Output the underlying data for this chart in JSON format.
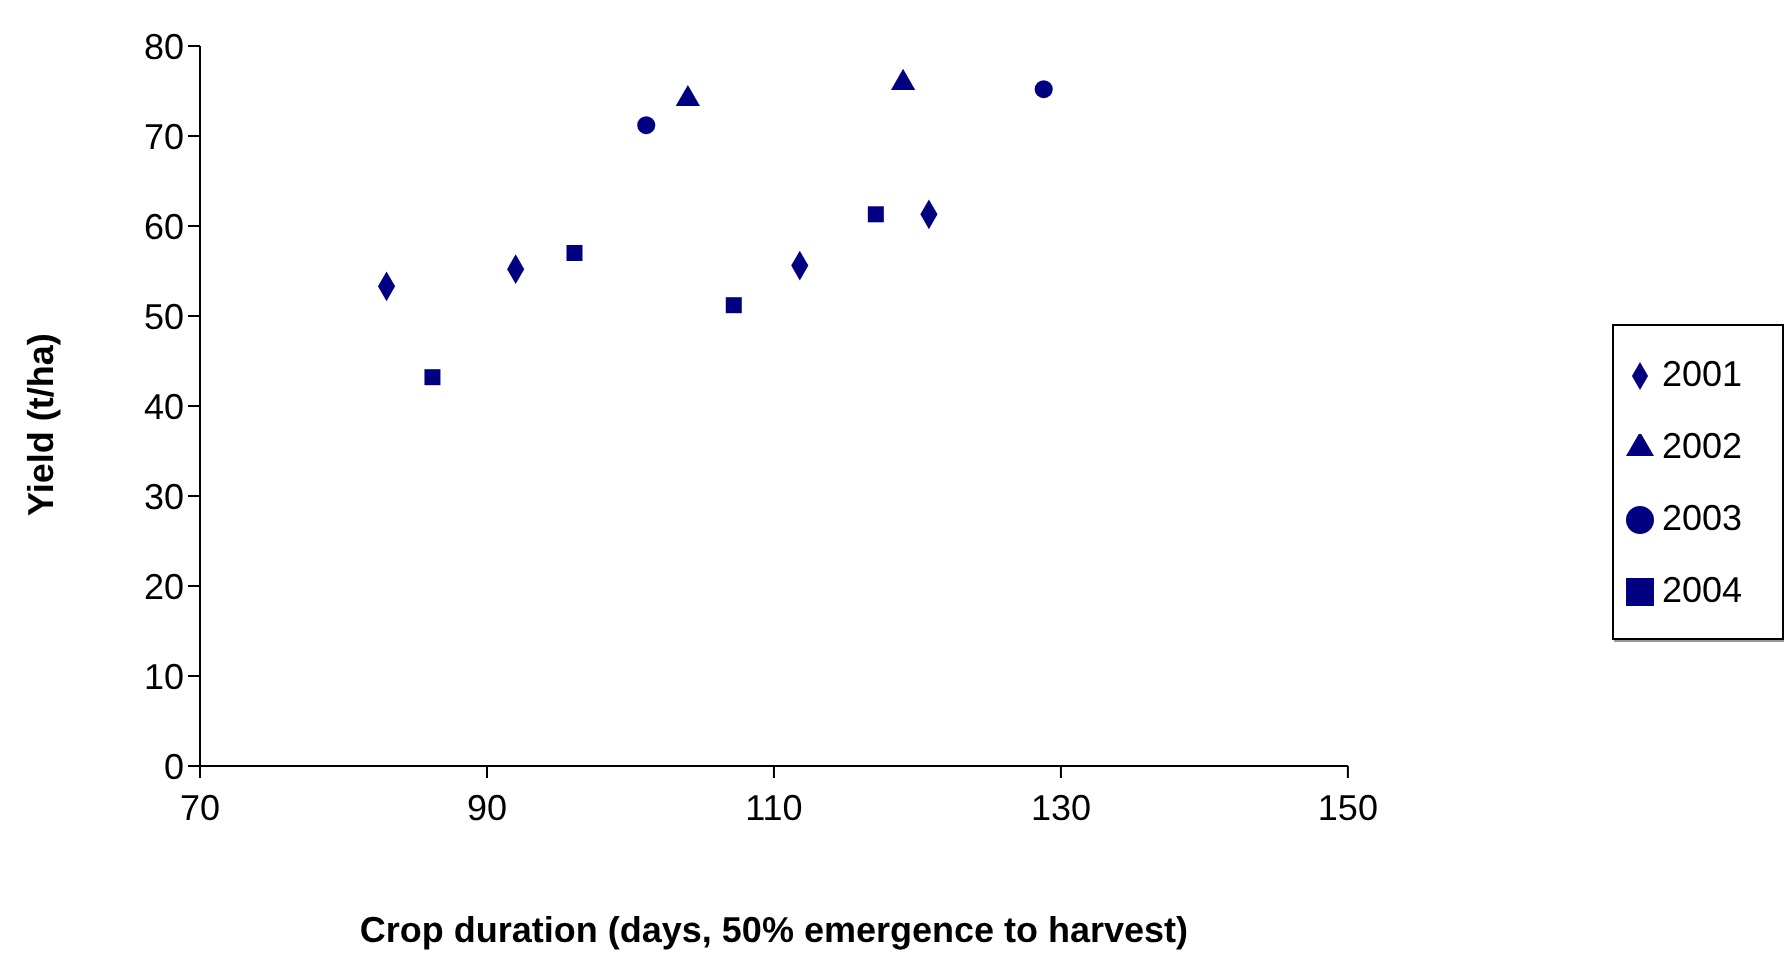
{
  "chart_data": {
    "type": "scatter",
    "xlabel": "Crop duration (days, 50% emergence to harvest)",
    "ylabel": "Yield (t/ha)",
    "xlim": [
      70,
      150
    ],
    "xticks": [
      70,
      90,
      110,
      130,
      150
    ],
    "ylim": [
      0,
      80
    ],
    "yticks": [
      0,
      10,
      20,
      30,
      40,
      50,
      60,
      70,
      80
    ],
    "grid": false,
    "legend": "right",
    "series": [
      {
        "name": "2001",
        "color": "#000080",
        "marker": "diamond",
        "x": [
          83.0,
          92.0,
          111.8,
          120.8
        ],
        "values": [
          53.3,
          55.2,
          55.6,
          61.3
        ]
      },
      {
        "name": "2002",
        "color": "#000080",
        "marker": "triangle",
        "x": [
          104.0,
          119.0
        ],
        "values": [
          74.1,
          75.9
        ]
      },
      {
        "name": "2003",
        "color": "#000080",
        "marker": "circle",
        "x": [
          101.1,
          128.8
        ],
        "values": [
          71.2,
          75.2
        ]
      },
      {
        "name": "2004",
        "color": "#000080",
        "marker": "square",
        "x": [
          86.2,
          96.1,
          107.2,
          117.1
        ],
        "values": [
          43.2,
          57.0,
          51.2,
          61.3
        ]
      }
    ]
  }
}
